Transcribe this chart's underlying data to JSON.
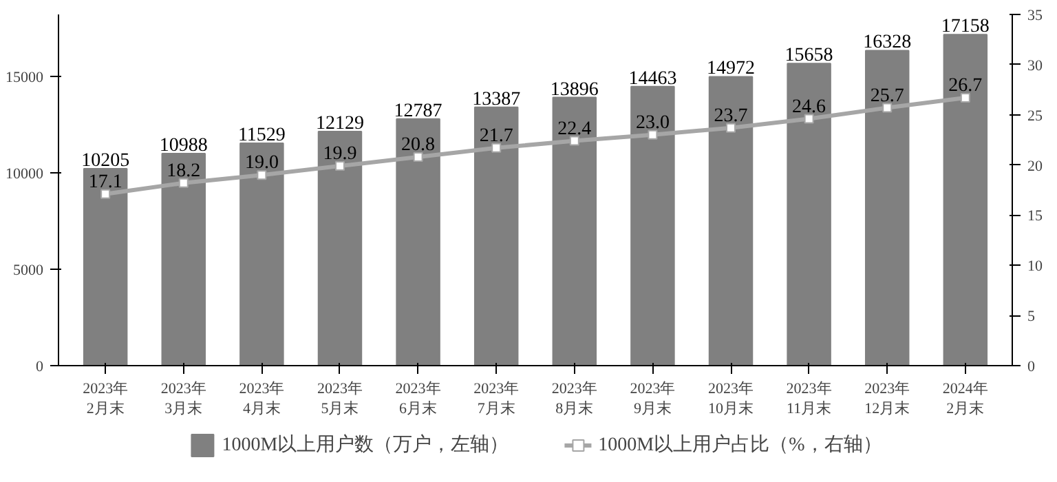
{
  "chart_data": {
    "type": "bar",
    "categories": [
      "2023年\n2月末",
      "2023年\n3月末",
      "2023年\n4月末",
      "2023年\n5月末",
      "2023年\n6月末",
      "2023年\n7月末",
      "2023年\n8月末",
      "2023年\n9月末",
      "2023年\n10月末",
      "2023年\n11月末",
      "2023年\n12月末",
      "2024年\n2月末"
    ],
    "series": [
      {
        "name": "1000M以上用户数（万户，左轴）",
        "color": "#808080",
        "values": [
          10205,
          10988,
          11529,
          12129,
          12787,
          13387,
          13896,
          14463,
          14972,
          15658,
          16328,
          17158
        ]
      },
      {
        "name": "1000M以上用户占比（%，右轴）",
        "type": "line",
        "axis": "y2",
        "color": "#a6a6a6",
        "values": [
          17.1,
          18.2,
          19.0,
          19.9,
          20.8,
          21.7,
          22.4,
          23.0,
          23.7,
          24.6,
          25.7,
          26.7
        ],
        "value_labels": [
          "17.1",
          "18.2",
          "19.0",
          "19.9",
          "20.8",
          "21.7",
          "22.4",
          "23.0",
          "23.7",
          "24.6",
          "25.7",
          "26.7"
        ]
      }
    ],
    "data_labels": true,
    "ylim": [
      0,
      18200
    ],
    "yticks": [
      0,
      5000,
      10000,
      15000
    ],
    "y2lim": [
      0,
      35
    ],
    "y2ticks": [
      0,
      5,
      10,
      15,
      20,
      25,
      30,
      35
    ],
    "grid": false,
    "legend": "bottom",
    "marker": "square"
  }
}
